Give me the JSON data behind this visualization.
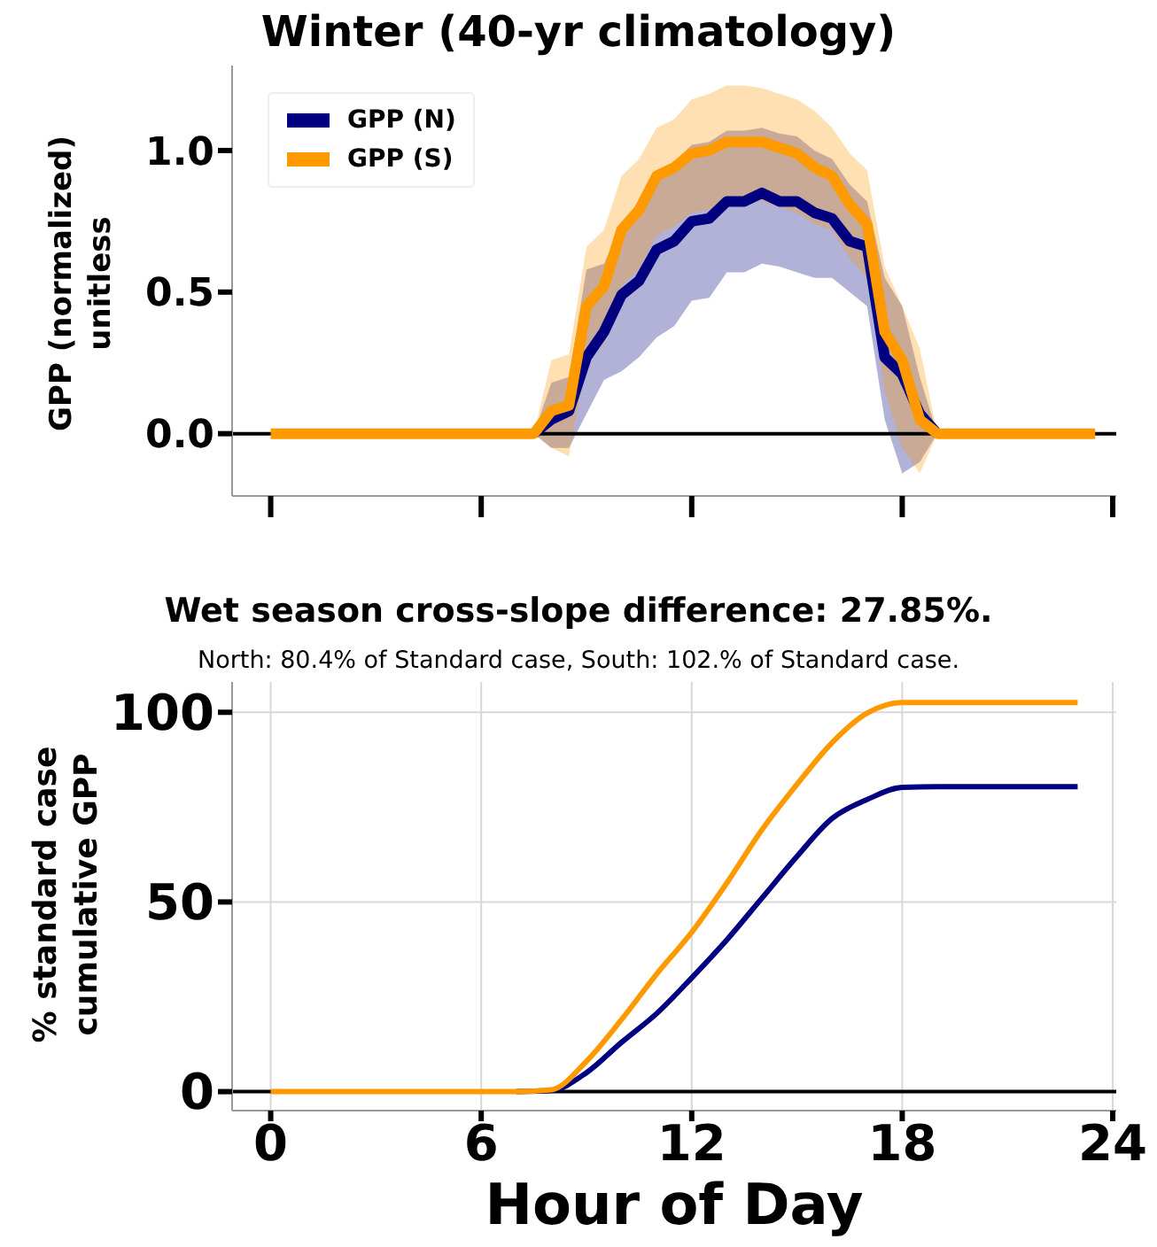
{
  "chart_data": [
    {
      "type": "line",
      "title": "Winter (40-yr climatology)",
      "ylabel": "GPP (normalized)\nunitless",
      "x": [
        0,
        0.5,
        1,
        1.5,
        2,
        2.5,
        3,
        3.5,
        4,
        4.5,
        5,
        5.5,
        6,
        6.5,
        7,
        7.5,
        8,
        8.5,
        9,
        9.5,
        10,
        10.5,
        11,
        11.5,
        12,
        12.5,
        13,
        13.5,
        14,
        14.5,
        15,
        15.5,
        16,
        16.5,
        17,
        17.5,
        18,
        18.5,
        19,
        19.5,
        20,
        20.5,
        21,
        21.5,
        22,
        22.5,
        23,
        23.5
      ],
      "series": [
        {
          "name": "GPP (N)",
          "color": "#000080",
          "values": [
            null,
            null,
            null,
            null,
            null,
            null,
            null,
            null,
            null,
            null,
            null,
            null,
            null,
            null,
            null,
            0,
            0.05,
            0.08,
            0.27,
            0.36,
            0.49,
            0.54,
            0.65,
            0.68,
            0.75,
            0.76,
            0.82,
            0.82,
            0.85,
            0.82,
            0.82,
            0.78,
            0.76,
            0.68,
            0.66,
            0.27,
            0.21,
            0.07,
            0,
            null,
            null,
            null,
            null,
            null,
            null,
            null,
            null,
            null
          ],
          "lower": [
            null,
            null,
            null,
            null,
            null,
            null,
            null,
            null,
            null,
            null,
            null,
            null,
            null,
            null,
            null,
            0,
            -0.05,
            -0.05,
            0.07,
            0.19,
            0.22,
            0.27,
            0.34,
            0.38,
            0.47,
            0.48,
            0.57,
            0.57,
            0.6,
            0.59,
            0.57,
            0.55,
            0.55,
            0.5,
            0.45,
            0.05,
            -0.14,
            -0.1,
            0,
            null,
            null,
            null,
            null,
            null,
            null,
            null,
            null,
            null
          ],
          "upper": [
            null,
            null,
            null,
            null,
            null,
            null,
            null,
            null,
            null,
            null,
            null,
            null,
            null,
            null,
            null,
            0,
            0.18,
            0.2,
            0.58,
            0.6,
            0.74,
            0.8,
            0.93,
            0.96,
            1.02,
            1.03,
            1.07,
            1.07,
            1.08,
            1.06,
            1.05,
            1.0,
            0.97,
            0.88,
            0.82,
            0.55,
            0.45,
            0.2,
            0,
            null,
            null,
            null,
            null,
            null,
            null,
            null,
            null,
            null
          ]
        },
        {
          "name": "GPP (S)",
          "color": "#ff9900",
          "values": [
            0,
            0,
            0,
            0,
            0,
            0,
            0,
            0,
            0,
            0,
            0,
            0,
            0,
            0,
            0,
            0,
            0.08,
            0.1,
            0.45,
            0.52,
            0.72,
            0.79,
            0.91,
            0.94,
            0.99,
            1.0,
            1.03,
            1.03,
            1.03,
            1.01,
            0.99,
            0.94,
            0.91,
            0.81,
            0.74,
            0.36,
            0.26,
            0.05,
            0,
            0,
            0,
            0,
            0,
            0,
            0,
            0,
            0,
            0
          ],
          "lower": [
            null,
            null,
            null,
            null,
            null,
            null,
            null,
            null,
            null,
            null,
            null,
            null,
            null,
            null,
            null,
            0,
            -0.05,
            -0.08,
            0.25,
            0.32,
            0.52,
            0.58,
            0.7,
            0.73,
            0.78,
            0.79,
            0.82,
            0.82,
            0.82,
            0.8,
            0.78,
            0.74,
            0.72,
            0.62,
            0.55,
            0.15,
            -0.05,
            -0.14,
            0,
            null,
            null,
            null,
            null,
            null,
            null,
            null,
            null,
            null
          ],
          "upper": [
            null,
            null,
            null,
            null,
            null,
            null,
            null,
            null,
            null,
            null,
            null,
            null,
            null,
            null,
            null,
            0,
            0.26,
            0.28,
            0.66,
            0.72,
            0.91,
            0.97,
            1.08,
            1.11,
            1.18,
            1.2,
            1.23,
            1.23,
            1.22,
            1.2,
            1.18,
            1.14,
            1.08,
            0.99,
            0.93,
            0.59,
            0.45,
            0.3,
            0,
            null,
            null,
            null,
            null,
            null,
            null,
            null,
            null,
            null
          ]
        }
      ],
      "xlim": [
        -1.1,
        24.1
      ],
      "xticks": [
        0,
        6,
        12,
        18,
        24
      ],
      "ylim": [
        -0.22,
        1.3
      ],
      "yticks": [
        {
          "value": 0,
          "label": "0.0"
        },
        {
          "value": 0.5,
          "label": "0.5"
        },
        {
          "value": 1,
          "label": "1.0"
        }
      ],
      "tick_labels": "y",
      "legend": "top left",
      "ref_lines": [
        {
          "axis": "y",
          "value": 0,
          "color": "#000000"
        }
      ]
    },
    {
      "type": "line",
      "title": "Wet season cross-slope difference: 27.85%.",
      "subtitle": "North: 80.4% of Standard case, South: 102.% of Standard case.",
      "xlabel": "Hour of Day",
      "ylabel": "% standard case\ncumulative GPP",
      "x": [
        0,
        1,
        2,
        3,
        4,
        5,
        6,
        7,
        8,
        9,
        10,
        11,
        12,
        13,
        14,
        15,
        16,
        17,
        18,
        19,
        20,
        21,
        22,
        23
      ],
      "series": [
        {
          "color": "#000080",
          "values": [
            null,
            null,
            null,
            null,
            null,
            null,
            null,
            0,
            0.3,
            5,
            13,
            20.6,
            30,
            40,
            51,
            62,
            72,
            77,
            80.2,
            80.4,
            80.4,
            80.4,
            80.4,
            80.4
          ]
        },
        {
          "color": "#ff9900",
          "values": [
            0,
            0,
            0,
            0,
            0,
            0,
            0,
            0,
            0.5,
            8,
            19,
            31,
            42,
            55,
            69,
            81,
            92,
            99.8,
            102.6,
            102.6,
            102.6,
            102.6,
            102.6,
            102.6
          ]
        }
      ],
      "xlim": [
        -1.1,
        24.1
      ],
      "xticks": [
        0,
        6,
        12,
        18,
        24
      ],
      "ylim": [
        -5,
        108
      ],
      "yticks": [
        0,
        50,
        100
      ],
      "grid": true,
      "ref_lines": [
        {
          "axis": "y",
          "value": 0,
          "color": "#000000"
        }
      ]
    }
  ]
}
